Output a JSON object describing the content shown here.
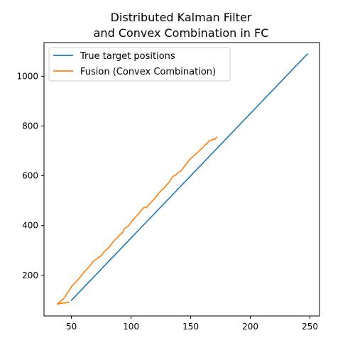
{
  "chart_data": {
    "type": "line",
    "title_lines": [
      "Distributed Kalman Filter",
      "and Convex Combination in FC"
    ],
    "xlabel": "",
    "ylabel": "",
    "xlim": [
      27,
      258
    ],
    "ylim": [
      37,
      1135
    ],
    "xticks": [
      50,
      100,
      150,
      200,
      250
    ],
    "yticks": [
      200,
      400,
      600,
      800,
      1000
    ],
    "grid": false,
    "legend_position": "top-left",
    "series": [
      {
        "name": "True target positions",
        "color": "#1f77b4",
        "x": [
          50,
          248
        ],
        "y": [
          100,
          1090
        ]
      },
      {
        "name": "Fusion (Convex Combination)",
        "color": "#ff7f0e",
        "x": [
          48,
          38,
          40,
          43,
          45,
          46,
          48,
          50,
          53,
          56,
          60,
          65,
          68,
          70,
          75,
          78,
          82,
          85,
          88,
          90,
          93,
          94,
          95,
          98,
          101,
          104,
          107,
          110,
          112,
          113,
          115,
          117,
          120,
          122,
          125,
          127,
          128,
          130,
          132,
          134,
          136,
          138,
          140,
          142,
          145,
          147,
          149,
          150,
          152,
          155,
          158,
          160,
          162,
          164,
          165,
          167,
          169,
          170,
          172
        ],
        "y": [
          93,
          85,
          93,
          105,
          115,
          125,
          138,
          155,
          170,
          185,
          210,
          235,
          255,
          262,
          280,
          298,
          315,
          335,
          350,
          360,
          372,
          385,
          390,
          400,
          420,
          435,
          452,
          470,
          475,
          472,
          485,
          495,
          510,
          522,
          540,
          548,
          553,
          565,
          575,
          590,
          600,
          605,
          615,
          620,
          640,
          652,
          665,
          668,
          678,
          690,
          705,
          712,
          725,
          730,
          740,
          742,
          748,
          745,
          755
        ]
      }
    ]
  }
}
